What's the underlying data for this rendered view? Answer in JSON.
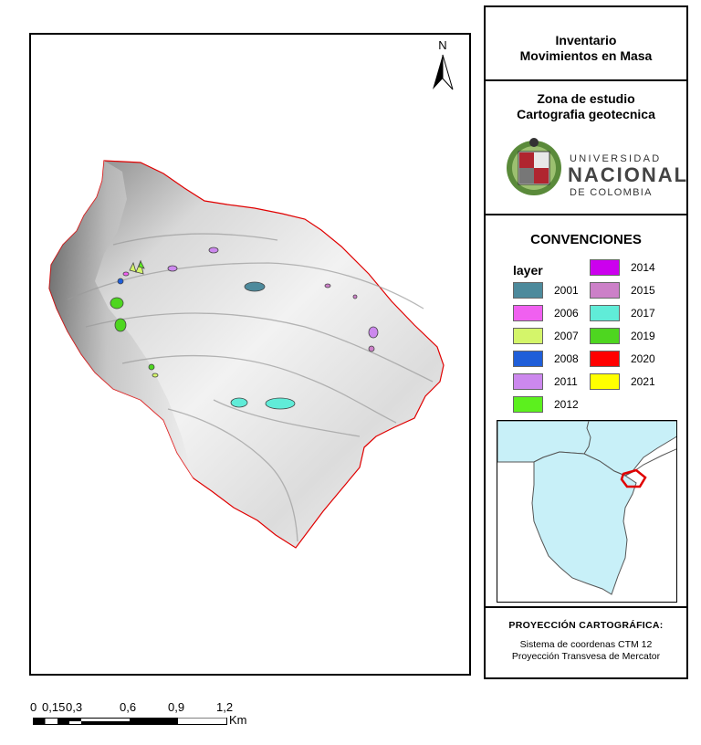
{
  "north": {
    "label": "N"
  },
  "panel": {
    "title_line1": "Inventario",
    "title_line2": "Movimientos en Masa",
    "study_line1": "Zona de estudio",
    "study_line2": "Cartografia geotecnica"
  },
  "logo": {
    "word1": "UNIVERSIDAD",
    "word2": "NACIONAL",
    "word3": "DE COLOMBIA"
  },
  "legend": {
    "title": "CONVENCIONES",
    "layer_label": "layer",
    "items_left": [
      {
        "label": "2001",
        "color": "#4d8a9c"
      },
      {
        "label": "2006",
        "color": "#f060f0"
      },
      {
        "label": "2007",
        "color": "#d4f56a"
      },
      {
        "label": "2008",
        "color": "#1f5ed9"
      },
      {
        "label": "2011",
        "color": "#cc88ee"
      },
      {
        "label": "2012",
        "color": "#5cf01e"
      }
    ],
    "items_right": [
      {
        "label": "2014",
        "color": "#cc00ee"
      },
      {
        "label": "2015",
        "color": "#cc80c8"
      },
      {
        "label": "2017",
        "color": "#60ecd8"
      },
      {
        "label": "2019",
        "color": "#4ed620"
      },
      {
        "label": "2020",
        "color": "#ff0000"
      },
      {
        "label": "2021",
        "color": "#ffff00"
      }
    ]
  },
  "projection": {
    "title": "PROYECCIÓN CARTOGRÁFICA:",
    "line1": "Sistema de coordenas CTM  12",
    "line2": "Proyección Transvesa de Mercator"
  },
  "scale": {
    "labels": [
      "0",
      "0,15",
      "0,3",
      "0,6",
      "0,9",
      "1,2"
    ],
    "unit": "Km"
  },
  "colors": {
    "study_boundary": "#e00000",
    "inset_fill": "#c8f0f8",
    "inset_outline": "#e00000"
  }
}
